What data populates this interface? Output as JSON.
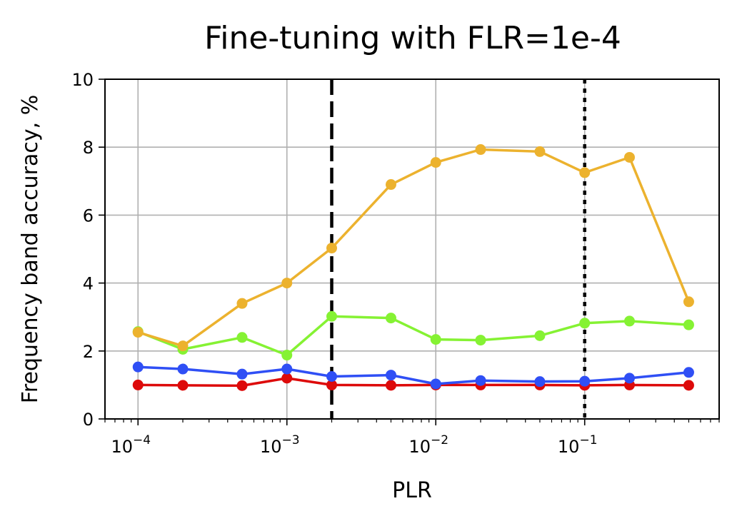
{
  "chart_data": {
    "type": "line",
    "title": "Fine-tuning with FLR=1e-4",
    "xlabel": "PLR",
    "ylabel": "Frequency band accuracy, %",
    "xscale": "log",
    "xlim": [
      6e-05,
      0.8
    ],
    "ylim": [
      0,
      10
    ],
    "grid": true,
    "x": [
      0.0001,
      0.0002,
      0.0005,
      0.001,
      0.002,
      0.005,
      0.01,
      0.02,
      0.05,
      0.1,
      0.2,
      0.5
    ],
    "x_tick_labels": [
      {
        "value": 0.0001,
        "base": "10",
        "exp": "−4"
      },
      {
        "value": 0.001,
        "base": "10",
        "exp": "−3"
      },
      {
        "value": 0.01,
        "base": "10",
        "exp": "−2"
      },
      {
        "value": 0.1,
        "base": "10",
        "exp": "−1"
      }
    ],
    "y_ticks": [
      "0",
      "2",
      "4",
      "6",
      "8",
      "10"
    ],
    "series": [
      {
        "color": "#ecb22e",
        "values": [
          2.55,
          2.15,
          3.4,
          4.0,
          5.03,
          6.9,
          7.55,
          7.93,
          7.87,
          7.25,
          7.7,
          3.45
        ]
      },
      {
        "color": "#85f233",
        "values": [
          2.57,
          2.05,
          2.4,
          1.88,
          3.02,
          2.97,
          2.34,
          2.32,
          2.45,
          2.82,
          2.88,
          2.77
        ]
      },
      {
        "color": "#2f4ff5",
        "values": [
          1.53,
          1.47,
          1.32,
          1.47,
          1.25,
          1.29,
          1.03,
          1.13,
          1.1,
          1.11,
          1.2,
          1.37
        ]
      },
      {
        "color": "#dd0a0a",
        "values": [
          1.0,
          0.99,
          0.98,
          1.2,
          1.0,
          0.99,
          1.0,
          1.0,
          1.0,
          0.99,
          1.0,
          0.99
        ]
      }
    ],
    "reference_lines": [
      {
        "x": 0.002,
        "style": "dashed",
        "color": "#000000"
      },
      {
        "x": 0.1,
        "style": "dotted",
        "color": "#000000"
      }
    ]
  }
}
